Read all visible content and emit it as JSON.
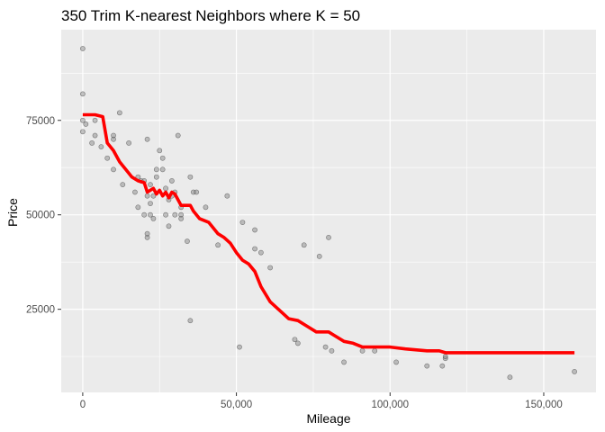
{
  "chart_data": {
    "type": "scatter",
    "title": "350 Trim K-nearest Neighbors where K = 50",
    "xlabel": "Mileage",
    "ylabel": "Price",
    "xlim": [
      -7000,
      167000
    ],
    "ylim": [
      3000,
      99000
    ],
    "x_ticks": [
      0,
      50000,
      100000,
      150000
    ],
    "x_tick_labels": [
      "0",
      "50,000",
      "100,000",
      "150,000"
    ],
    "y_ticks": [
      25000,
      50000,
      75000
    ],
    "y_tick_labels": [
      "25000",
      "50000",
      "75000"
    ],
    "grid": true,
    "colors": {
      "panel_background": "#ebebeb",
      "grid_major": "#ffffff",
      "point_fill": "#7f7f7f",
      "point_stroke": "#3a3a3a",
      "fit_line": "#ff0000"
    },
    "series": [
      {
        "type": "scatter",
        "points": [
          [
            0,
            94000
          ],
          [
            0,
            82000
          ],
          [
            0,
            75000
          ],
          [
            0,
            72000
          ],
          [
            1000,
            74000
          ],
          [
            3000,
            69000
          ],
          [
            4000,
            75000
          ],
          [
            4000,
            71000
          ],
          [
            6000,
            68000
          ],
          [
            8000,
            65000
          ],
          [
            10000,
            62000
          ],
          [
            10000,
            70000
          ],
          [
            10000,
            71000
          ],
          [
            12000,
            77000
          ],
          [
            13000,
            58000
          ],
          [
            15000,
            69000
          ],
          [
            17000,
            56000
          ],
          [
            18000,
            52000
          ],
          [
            18000,
            60000
          ],
          [
            19000,
            59000
          ],
          [
            20000,
            59000
          ],
          [
            20000,
            50000
          ],
          [
            21000,
            70000
          ],
          [
            21000,
            55000
          ],
          [
            21000,
            44000
          ],
          [
            21000,
            45000
          ],
          [
            22000,
            50000
          ],
          [
            22000,
            58000
          ],
          [
            22000,
            53000
          ],
          [
            23000,
            55000
          ],
          [
            23000,
            49000
          ],
          [
            24000,
            60000
          ],
          [
            24000,
            62000
          ],
          [
            25000,
            67000
          ],
          [
            26000,
            62000
          ],
          [
            26000,
            65000
          ],
          [
            27000,
            57000
          ],
          [
            27000,
            50000
          ],
          [
            28000,
            54000
          ],
          [
            28000,
            47000
          ],
          [
            29000,
            59000
          ],
          [
            29000,
            55000
          ],
          [
            30000,
            56000
          ],
          [
            30000,
            50000
          ],
          [
            31000,
            71000
          ],
          [
            32000,
            50000
          ],
          [
            32000,
            52000
          ],
          [
            32000,
            49000
          ],
          [
            34000,
            43000
          ],
          [
            35000,
            60000
          ],
          [
            35000,
            22000
          ],
          [
            36000,
            56000
          ],
          [
            37000,
            56000
          ],
          [
            40000,
            52000
          ],
          [
            44000,
            42000
          ],
          [
            47000,
            55000
          ],
          [
            51000,
            15000
          ],
          [
            52000,
            48000
          ],
          [
            56000,
            41000
          ],
          [
            56000,
            46000
          ],
          [
            58000,
            40000
          ],
          [
            61000,
            36000
          ],
          [
            69000,
            17000
          ],
          [
            70000,
            16000
          ],
          [
            72000,
            42000
          ],
          [
            77000,
            39000
          ],
          [
            79000,
            15000
          ],
          [
            80000,
            44000
          ],
          [
            81000,
            14000
          ],
          [
            85000,
            11000
          ],
          [
            91000,
            14000
          ],
          [
            95000,
            14000
          ],
          [
            102000,
            11000
          ],
          [
            112000,
            10000
          ],
          [
            117000,
            10000
          ],
          [
            118000,
            12000
          ],
          [
            118000,
            12500
          ],
          [
            139000,
            7000
          ],
          [
            160000,
            8500
          ]
        ]
      },
      {
        "type": "line",
        "name": "",
        "points": [
          [
            0,
            76500
          ],
          [
            4000,
            76500
          ],
          [
            6500,
            76000
          ],
          [
            8000,
            69000
          ],
          [
            10000,
            67000
          ],
          [
            12000,
            64000
          ],
          [
            14000,
            62000
          ],
          [
            16000,
            60000
          ],
          [
            18000,
            59000
          ],
          [
            20000,
            58500
          ],
          [
            21000,
            56000
          ],
          [
            22000,
            56500
          ],
          [
            23000,
            57000
          ],
          [
            24000,
            55500
          ],
          [
            25000,
            56500
          ],
          [
            26000,
            55000
          ],
          [
            27000,
            56000
          ],
          [
            28000,
            54500
          ],
          [
            29000,
            56000
          ],
          [
            30000,
            55500
          ],
          [
            31000,
            54000
          ],
          [
            32000,
            52500
          ],
          [
            35000,
            52500
          ],
          [
            36000,
            51000
          ],
          [
            38000,
            49000
          ],
          [
            41000,
            48000
          ],
          [
            44000,
            45000
          ],
          [
            46000,
            44000
          ],
          [
            48000,
            42500
          ],
          [
            50000,
            40000
          ],
          [
            52000,
            38000
          ],
          [
            54000,
            37000
          ],
          [
            56000,
            35000
          ],
          [
            58000,
            31000
          ],
          [
            61000,
            27000
          ],
          [
            65000,
            24000
          ],
          [
            67000,
            22500
          ],
          [
            70000,
            22000
          ],
          [
            73000,
            20500
          ],
          [
            76000,
            19000
          ],
          [
            80000,
            19000
          ],
          [
            82000,
            18000
          ],
          [
            85000,
            16500
          ],
          [
            88000,
            16000
          ],
          [
            91000,
            15000
          ],
          [
            100000,
            15000
          ],
          [
            105000,
            14500
          ],
          [
            112000,
            14000
          ],
          [
            116000,
            14000
          ],
          [
            118000,
            13500
          ],
          [
            160000,
            13500
          ]
        ]
      }
    ]
  }
}
